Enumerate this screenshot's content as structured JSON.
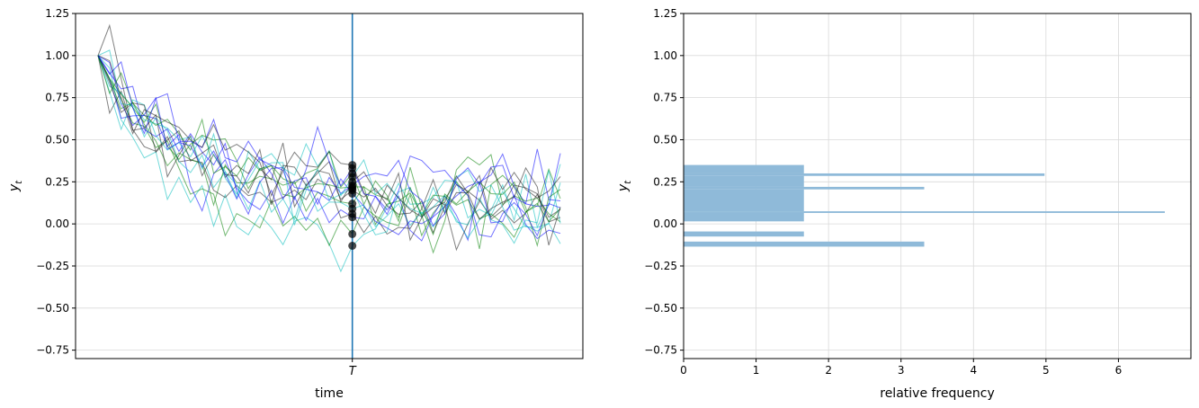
{
  "chart_data": [
    {
      "type": "line",
      "xlabel": "time",
      "ylabel": "y_t",
      "ylim": [
        -0.8,
        1.25
      ],
      "yticks": [
        1.25,
        1.0,
        0.75,
        0.5,
        0.25,
        0.0,
        -0.25,
        -0.5,
        -0.75
      ],
      "ytick_labels": [
        "1.25",
        "1.00",
        "0.75",
        "0.50",
        "0.25",
        "0.00",
        "−0.25",
        "−0.50",
        "−0.75"
      ],
      "x_range": [
        0,
        40
      ],
      "xticks": [
        {
          "value": 22,
          "label": "T"
        }
      ],
      "vline": {
        "x": 22,
        "color": "#1f77b4"
      },
      "grid": "horizontal",
      "path_colors": [
        "#00bcbc",
        "#008000",
        "#0000ff",
        "#1a1a1a"
      ],
      "endpoint_color": "#000000",
      "endpoints": [
        -0.13,
        -0.06,
        0.04,
        0.06,
        0.09,
        0.12,
        0.18,
        0.2,
        0.21,
        0.22,
        0.23,
        0.25,
        0.28,
        0.3,
        0.33,
        0.35
      ]
    },
    {
      "type": "bar",
      "orientation": "horizontal",
      "xlabel": "relative frequency",
      "ylabel": "y_t",
      "xlim": [
        0,
        7.0
      ],
      "ylim": [
        -0.8,
        1.25
      ],
      "xticks": [
        0,
        1,
        2,
        3,
        4,
        5,
        6
      ],
      "xtick_labels": [
        "0",
        "1",
        "2",
        "3",
        "4",
        "5",
        "6"
      ],
      "yticks": [
        1.25,
        1.0,
        0.75,
        0.5,
        0.25,
        0.0,
        -0.25,
        -0.5,
        -0.75
      ],
      "ytick_labels": [
        "1.25",
        "1.00",
        "0.75",
        "0.50",
        "0.25",
        "0.00",
        "−0.25",
        "−0.50",
        "−0.75"
      ],
      "grid": "both",
      "bar_color": "#8fbad9",
      "bars": [
        {
          "low": -0.135,
          "high": -0.105,
          "value": 3.32
        },
        {
          "low": -0.075,
          "high": -0.045,
          "value": 1.66
        },
        {
          "low": 0.015,
          "high": 0.065,
          "value": 1.66
        },
        {
          "low": 0.065,
          "high": 0.075,
          "value": 6.64
        },
        {
          "low": 0.075,
          "high": 0.205,
          "value": 1.66
        },
        {
          "low": 0.205,
          "high": 0.22,
          "value": 3.32
        },
        {
          "low": 0.22,
          "high": 0.285,
          "value": 1.66
        },
        {
          "low": 0.285,
          "high": 0.3,
          "value": 4.98
        },
        {
          "low": 0.3,
          "high": 0.35,
          "value": 1.66
        }
      ]
    }
  ]
}
